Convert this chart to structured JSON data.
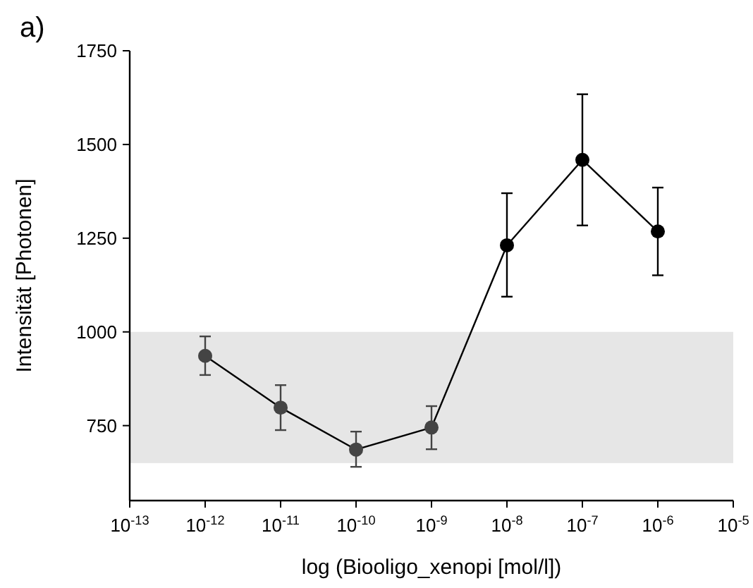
{
  "chart_data": {
    "type": "line",
    "annotations": [
      "a)"
    ],
    "xlabel": "log (Biooligo_xenopi [mol/l])",
    "ylabel": "Intensität [Photonen]",
    "log": "x",
    "x": [
      1e-12,
      1e-11,
      1e-10,
      1e-09,
      1e-08,
      1e-07,
      1e-06
    ],
    "series": [
      {
        "color": "#000000",
        "colors": [
          "#444444",
          "#444444",
          "#444444",
          "#444444",
          "#000000",
          "#000000",
          "#000000"
        ],
        "values": [
          936,
          798,
          686,
          745,
          1231,
          1459,
          1268
        ],
        "errors": [
          [
            885,
            988
          ],
          [
            738,
            858
          ],
          [
            640,
            734
          ],
          [
            687,
            802
          ],
          [
            1094,
            1370
          ],
          [
            1284,
            1634
          ],
          [
            1151,
            1385
          ]
        ]
      }
    ],
    "xlim": [
      1e-13,
      1e-05
    ],
    "xticks": [
      {
        "value": 1e-13,
        "label": "10$^{-13}$"
      },
      {
        "value": 1e-12,
        "label": "10$^{-12}$"
      },
      {
        "value": 1e-11,
        "label": "10$^{-11}$"
      },
      {
        "value": 1e-10,
        "label": "10$^{-10}$"
      },
      {
        "value": 1e-09,
        "label": "10$^{-9}$"
      },
      {
        "value": 1e-08,
        "label": "10$^{-8}$"
      },
      {
        "value": 1e-07,
        "label": "10$^{-7}$"
      },
      {
        "value": 1e-06,
        "label": "10$^{-6}$"
      },
      {
        "value": 1e-05,
        "label": "10$^{-5}$"
      }
    ],
    "ylim": [
      550,
      1750
    ],
    "yticks": [
      750,
      1000,
      1250,
      1500,
      1750
    ],
    "bands": [
      {
        "axis": "y",
        "from": 650,
        "to": 1000,
        "color": "#e6e6e6"
      }
    ],
    "marker": "circle",
    "line_style": "solid",
    "grid": false
  }
}
